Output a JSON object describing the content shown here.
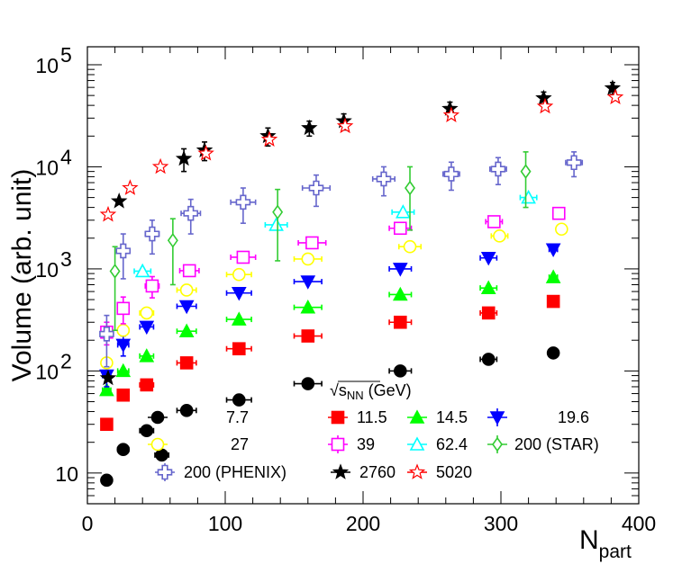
{
  "chart_data": {
    "type": "scatter",
    "title": "",
    "xlabel": "N",
    "xlabel_sub": "part",
    "ylabel": "Volume (arb. unit)",
    "xlim": [
      0,
      400
    ],
    "ylim": [
      5,
      150000
    ],
    "yscale": "log",
    "x_ticks": [
      {
        "v": 0,
        "label": "0"
      },
      {
        "v": 100,
        "label": "100"
      },
      {
        "v": 200,
        "label": "200"
      },
      {
        "v": 300,
        "label": "300"
      },
      {
        "v": 400,
        "label": "400"
      }
    ],
    "y_ticks": [
      {
        "v": 10,
        "base": "10",
        "exp": ""
      },
      {
        "v": 100,
        "base": "10",
        "exp": "2"
      },
      {
        "v": 1000,
        "base": "10",
        "exp": "3"
      },
      {
        "v": 10000,
        "base": "10",
        "exp": "4"
      },
      {
        "v": 100000,
        "base": "10",
        "exp": "5"
      }
    ],
    "legend_title": "√s",
    "legend_title_sub": "NN",
    "legend_title_unit": " (GeV)",
    "series": [
      {
        "name": "7.7",
        "color": "#000000",
        "marker": "circle",
        "fill": true,
        "x": [
          14,
          26,
          43,
          54,
          72,
          110,
          160,
          227,
          291,
          338
        ],
        "y": [
          8.5,
          17,
          26,
          15,
          41,
          52,
          75,
          100,
          130,
          150
        ],
        "xerr": [
          3,
          4,
          5,
          5,
          7,
          9,
          10,
          8,
          6,
          3
        ],
        "yerr": [
          0,
          0,
          0,
          0,
          0,
          0,
          0,
          0,
          0,
          0
        ]
      },
      {
        "name": "11.5",
        "color": "#ff0000",
        "marker": "square",
        "fill": true,
        "x": [
          14,
          26,
          43,
          72,
          110,
          160,
          227,
          291,
          338
        ],
        "y": [
          30,
          58,
          73,
          120,
          165,
          220,
          300,
          370,
          480
        ],
        "xerr": [
          3,
          4,
          5,
          7,
          9,
          10,
          8,
          6,
          3
        ],
        "yerr": [
          0,
          0,
          0,
          0,
          0,
          0,
          0,
          0,
          0
        ]
      },
      {
        "name": "14.5",
        "color": "#00ff00",
        "marker": "triangle-up",
        "fill": true,
        "x": [
          14,
          26,
          43,
          72,
          110,
          160,
          227,
          291,
          338
        ],
        "y": [
          65,
          100,
          140,
          245,
          320,
          420,
          560,
          650,
          830
        ],
        "xerr": [
          3,
          4,
          5,
          7,
          9,
          10,
          8,
          6,
          3
        ],
        "yerr": [
          0,
          0,
          0,
          0,
          0,
          0,
          0,
          0,
          0
        ]
      },
      {
        "name": "19.6",
        "color": "#0000ff",
        "marker": "triangle-down",
        "fill": true,
        "x": [
          14,
          26,
          43,
          72,
          110,
          160,
          227,
          291,
          338
        ],
        "y": [
          90,
          180,
          270,
          430,
          580,
          750,
          1000,
          1280,
          1550
        ],
        "xerr": [
          3,
          4,
          5,
          7,
          9,
          10,
          8,
          6,
          3
        ],
        "yerr": [
          20,
          40,
          0,
          0,
          0,
          0,
          0,
          0,
          0
        ]
      },
      {
        "name": "27",
        "color": "#ffff00",
        "marker": "circle",
        "fill": false,
        "x": [
          14,
          26,
          43,
          72,
          110,
          160,
          234,
          299,
          344
        ],
        "y": [
          120,
          250,
          370,
          620,
          880,
          1250,
          1650,
          2100,
          2450
        ],
        "xerr": [
          3,
          4,
          5,
          7,
          9,
          10,
          8,
          6,
          3
        ],
        "yerr": [
          0,
          0,
          0,
          0,
          0,
          0,
          0,
          0,
          0
        ]
      },
      {
        "name": "39",
        "color": "#ff00ff",
        "marker": "square",
        "fill": false,
        "x": [
          14,
          26,
          47,
          74,
          113,
          163,
          227,
          295,
          342
        ],
        "y": [
          240,
          410,
          680,
          960,
          1300,
          1800,
          2500,
          2900,
          3500
        ],
        "xerr": [
          3,
          4,
          5,
          7,
          9,
          10,
          8,
          6,
          3
        ],
        "yerr": [
          60,
          120,
          160,
          0,
          0,
          0,
          0,
          0,
          0
        ]
      },
      {
        "name": "62.4",
        "color": "#00ffff",
        "marker": "triangle-up",
        "fill": false,
        "x": [
          40,
          137,
          229,
          320
        ],
        "y": [
          950,
          2700,
          3600,
          5000
        ],
        "xerr": [
          6,
          8,
          8,
          6
        ],
        "yerr": [
          0,
          0,
          0,
          0
        ]
      },
      {
        "name": "200 (STAR)",
        "color": "#33cc33",
        "marker": "diamond",
        "fill": false,
        "x": [
          20,
          62,
          138,
          234,
          318
        ],
        "y": [
          950,
          1900,
          3600,
          6200,
          9000
        ],
        "xerr": [
          0,
          0,
          0,
          0,
          0
        ],
        "yerr": [
          700,
          1200,
          2400,
          3800,
          5000
        ]
      },
      {
        "name": "200 (PHENIX)",
        "color": "#6666cc",
        "marker": "cross",
        "fill": false,
        "x": [
          14,
          26,
          47,
          75,
          113,
          166,
          215,
          264,
          298,
          353
        ],
        "y": [
          230,
          1500,
          2200,
          3500,
          4500,
          6200,
          7600,
          8500,
          9500,
          11000
        ],
        "xerr": [
          3,
          4,
          5,
          7,
          9,
          10,
          8,
          6,
          6,
          6
        ],
        "yerr": [
          120,
          700,
          800,
          1300,
          1700,
          2100,
          2400,
          2600,
          2800,
          3000
        ]
      },
      {
        "name": "2760",
        "color": "#000000",
        "marker": "star",
        "fill": true,
        "x": [
          15,
          23,
          70,
          85,
          131,
          161,
          186,
          263,
          331,
          381
        ],
        "y": [
          85,
          4600,
          12000,
          14500,
          20000,
          24000,
          28000,
          37000,
          47000,
          59000
        ],
        "xerr": [
          0,
          0,
          0,
          0,
          0,
          0,
          0,
          0,
          0,
          0
        ],
        "yerr": [
          0,
          0,
          3000,
          3000,
          4000,
          4000,
          5000,
          6000,
          7000,
          8000
        ]
      },
      {
        "name": "5020",
        "color": "#ff0000",
        "marker": "star",
        "fill": false,
        "x": [
          15,
          31,
          53,
          86,
          132,
          187,
          264,
          332,
          383
        ],
        "y": [
          3400,
          6200,
          10000,
          13500,
          18500,
          25000,
          32000,
          39000,
          48000
        ],
        "xerr": [
          0,
          0,
          0,
          0,
          0,
          0,
          0,
          0,
          0
        ],
        "yerr": [
          0,
          0,
          0,
          0,
          0,
          0,
          0,
          0,
          0
        ]
      }
    ],
    "legend_rows": [
      [
        "7.7",
        "11.5",
        "14.5",
        "19.6"
      ],
      [
        "27",
        "39",
        "62.4",
        "200 (STAR)"
      ],
      [
        "200 (PHENIX)",
        "2760",
        "5020"
      ]
    ]
  }
}
